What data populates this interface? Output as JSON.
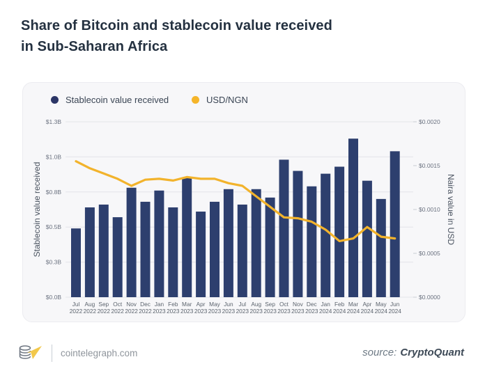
{
  "title": {
    "line1": "Share of Bitcoin and stablecoin value received",
    "line2": "in Sub-Saharan Africa"
  },
  "legend": [
    {
      "label": "Stablecoin value received",
      "color": "#2b3566"
    },
    {
      "label": "USD/NGN",
      "color": "#f5b52a"
    }
  ],
  "colors": {
    "bar": "#2d3f6e",
    "line": "#f2b32c",
    "grid": "#e3e4e9",
    "tick_text": "#6b7280",
    "axis_text": "#5b636d",
    "card_bg": "#f7f7f9",
    "title": "#243140"
  },
  "chart_data": {
    "type": "bar",
    "title": "Share of Bitcoin and stablecoin value received in Sub-Saharan Africa",
    "categories": [
      "Jul 2022",
      "Aug 2022",
      "Sep 2022",
      "Oct 2022",
      "Nov 2022",
      "Dec 2022",
      "Jan 2023",
      "Feb 2023",
      "Mar 2023",
      "Apr 2023",
      "May 2023",
      "Jun 2023",
      "Jul 2023",
      "Aug 2023",
      "Sep 2023",
      "Oct 2023",
      "Nov 2023",
      "Dec 2023",
      "Jan 2024",
      "Feb 2024",
      "Mar 2024",
      "Apr 2024",
      "May 2024",
      "Jun 2024"
    ],
    "series": [
      {
        "name": "Stablecoin value received",
        "type": "bar",
        "axis": "left",
        "unit": "billion USD",
        "values": [
          0.49,
          0.64,
          0.66,
          0.57,
          0.78,
          0.68,
          0.76,
          0.64,
          0.85,
          0.61,
          0.68,
          0.77,
          0.66,
          0.77,
          0.71,
          0.98,
          0.9,
          0.79,
          0.88,
          0.93,
          1.13,
          0.83,
          0.7,
          1.04
        ]
      },
      {
        "name": "USD/NGN",
        "type": "line",
        "axis": "right",
        "unit": "USD per naira",
        "values": [
          0.00155,
          0.00147,
          0.00141,
          0.00135,
          0.00127,
          0.00134,
          0.00135,
          0.00133,
          0.00137,
          0.00135,
          0.00135,
          0.0013,
          0.00127,
          0.00115,
          0.00103,
          0.00091,
          0.0009,
          0.00086,
          0.00077,
          0.00064,
          0.00067,
          0.0008,
          0.00069,
          0.00067
        ]
      }
    ],
    "left_axis": {
      "label": "Stablecoin value received",
      "min": 0,
      "max": 1.25,
      "tick_values": [
        0,
        0.25,
        0.5,
        0.75,
        1.0,
        1.25
      ],
      "tick_labels": [
        "$0.0B",
        "$0.3B",
        "$0.5B",
        "$0.8B",
        "$1.0B",
        "$1.3B"
      ]
    },
    "right_axis": {
      "label": "Naira value in USD",
      "min": 0,
      "max": 0.002,
      "tick_values": [
        0,
        0.0005,
        0.001,
        0.0015,
        0.002
      ],
      "tick_labels": [
        "$0.0000",
        "$0.0005",
        "$0.0010",
        "$0.0015",
        "$0.0020"
      ]
    },
    "grid": true,
    "legend_position": "top-left"
  },
  "footer": {
    "site": "cointelegraph.com",
    "source_label": "source:",
    "source_name": "CryptoQuant"
  }
}
